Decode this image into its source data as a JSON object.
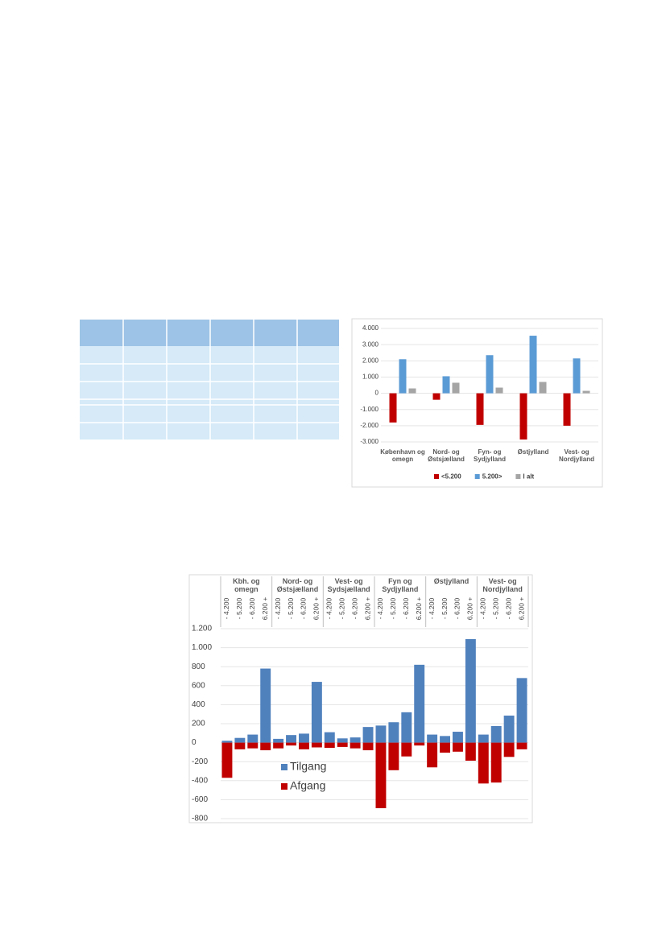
{
  "chart_data": [
    {
      "type": "bar",
      "categories": [
        "København og omegn",
        "Nord- og Østsjælland",
        "Fyn- og Sydjylland",
        "Østjylland",
        "Vest- og Nordjylland"
      ],
      "series": [
        {
          "name": "<5.200",
          "color": "#c00000",
          "values": [
            -1800,
            -400,
            -1950,
            -2850,
            -2000
          ]
        },
        {
          "name": "5.200>",
          "color": "#5b9bd5",
          "values": [
            2100,
            1050,
            2350,
            3550,
            2150
          ]
        },
        {
          "name": "I alt",
          "color": "#a5a5a5",
          "values": [
            300,
            650,
            350,
            700,
            150
          ]
        }
      ],
      "ylim": [
        -3000,
        4000
      ],
      "yticks": [
        {
          "value": 4000,
          "label": "4.000"
        },
        {
          "value": 3000,
          "label": "3.000"
        },
        {
          "value": 2000,
          "label": "2.000"
        },
        {
          "value": 1000,
          "label": "1.000"
        },
        0,
        {
          "value": -1000,
          "label": "-1.000"
        },
        {
          "value": -2000,
          "label": "-2.000"
        },
        {
          "value": -3000,
          "label": "-3.000"
        }
      ],
      "grid": true,
      "legend": "bottom"
    },
    {
      "type": "grouped-stacked",
      "groups": [
        "Kbh. og omegn",
        "Nord- og Østsjælland",
        "Vest- og Sydsjælland",
        "Fyn og Sydjylland",
        "Østjylland",
        "Vest- og Nordjylland"
      ],
      "categories": [
        "- 4.200",
        "- 5.200",
        "- 6.200",
        "6.200 +",
        "- 4.200",
        "- 5.200",
        "- 6.200",
        "6.200 +",
        "- 4.200",
        "- 5.200",
        "- 6.200",
        "6.200 +",
        "- 4.200",
        "- 5.200",
        "- 6.200",
        "6.200 +",
        "- 4.200",
        "- 5.200",
        "- 6.200",
        "6.200 +",
        "- 4.200",
        "- 5.200",
        "- 6.200",
        "6.200 +"
      ],
      "series": [
        {
          "name": "Tilgang",
          "color": "#4f81bd",
          "values": [
            20,
            50,
            85,
            780,
            40,
            80,
            95,
            640,
            110,
            45,
            55,
            165,
            180,
            215,
            320,
            820,
            85,
            70,
            115,
            1090,
            85,
            175,
            285,
            680
          ]
        },
        {
          "name": "Afgang",
          "color": "#c00000",
          "values": [
            -370,
            -70,
            -60,
            -80,
            -60,
            -30,
            -70,
            -50,
            -55,
            -45,
            -60,
            -80,
            -690,
            -290,
            -145,
            -30,
            -260,
            -105,
            -95,
            -190,
            -430,
            -420,
            -150,
            -70
          ]
        }
      ],
      "ylim": [
        -800,
        1200
      ],
      "yticks": [
        {
          "value": 1200,
          "label": "1.200"
        },
        {
          "value": 1000,
          "label": "1.000"
        },
        800,
        600,
        400,
        200,
        0,
        -200,
        -400,
        -600,
        -800
      ],
      "grid": true,
      "legend": "inside"
    }
  ]
}
